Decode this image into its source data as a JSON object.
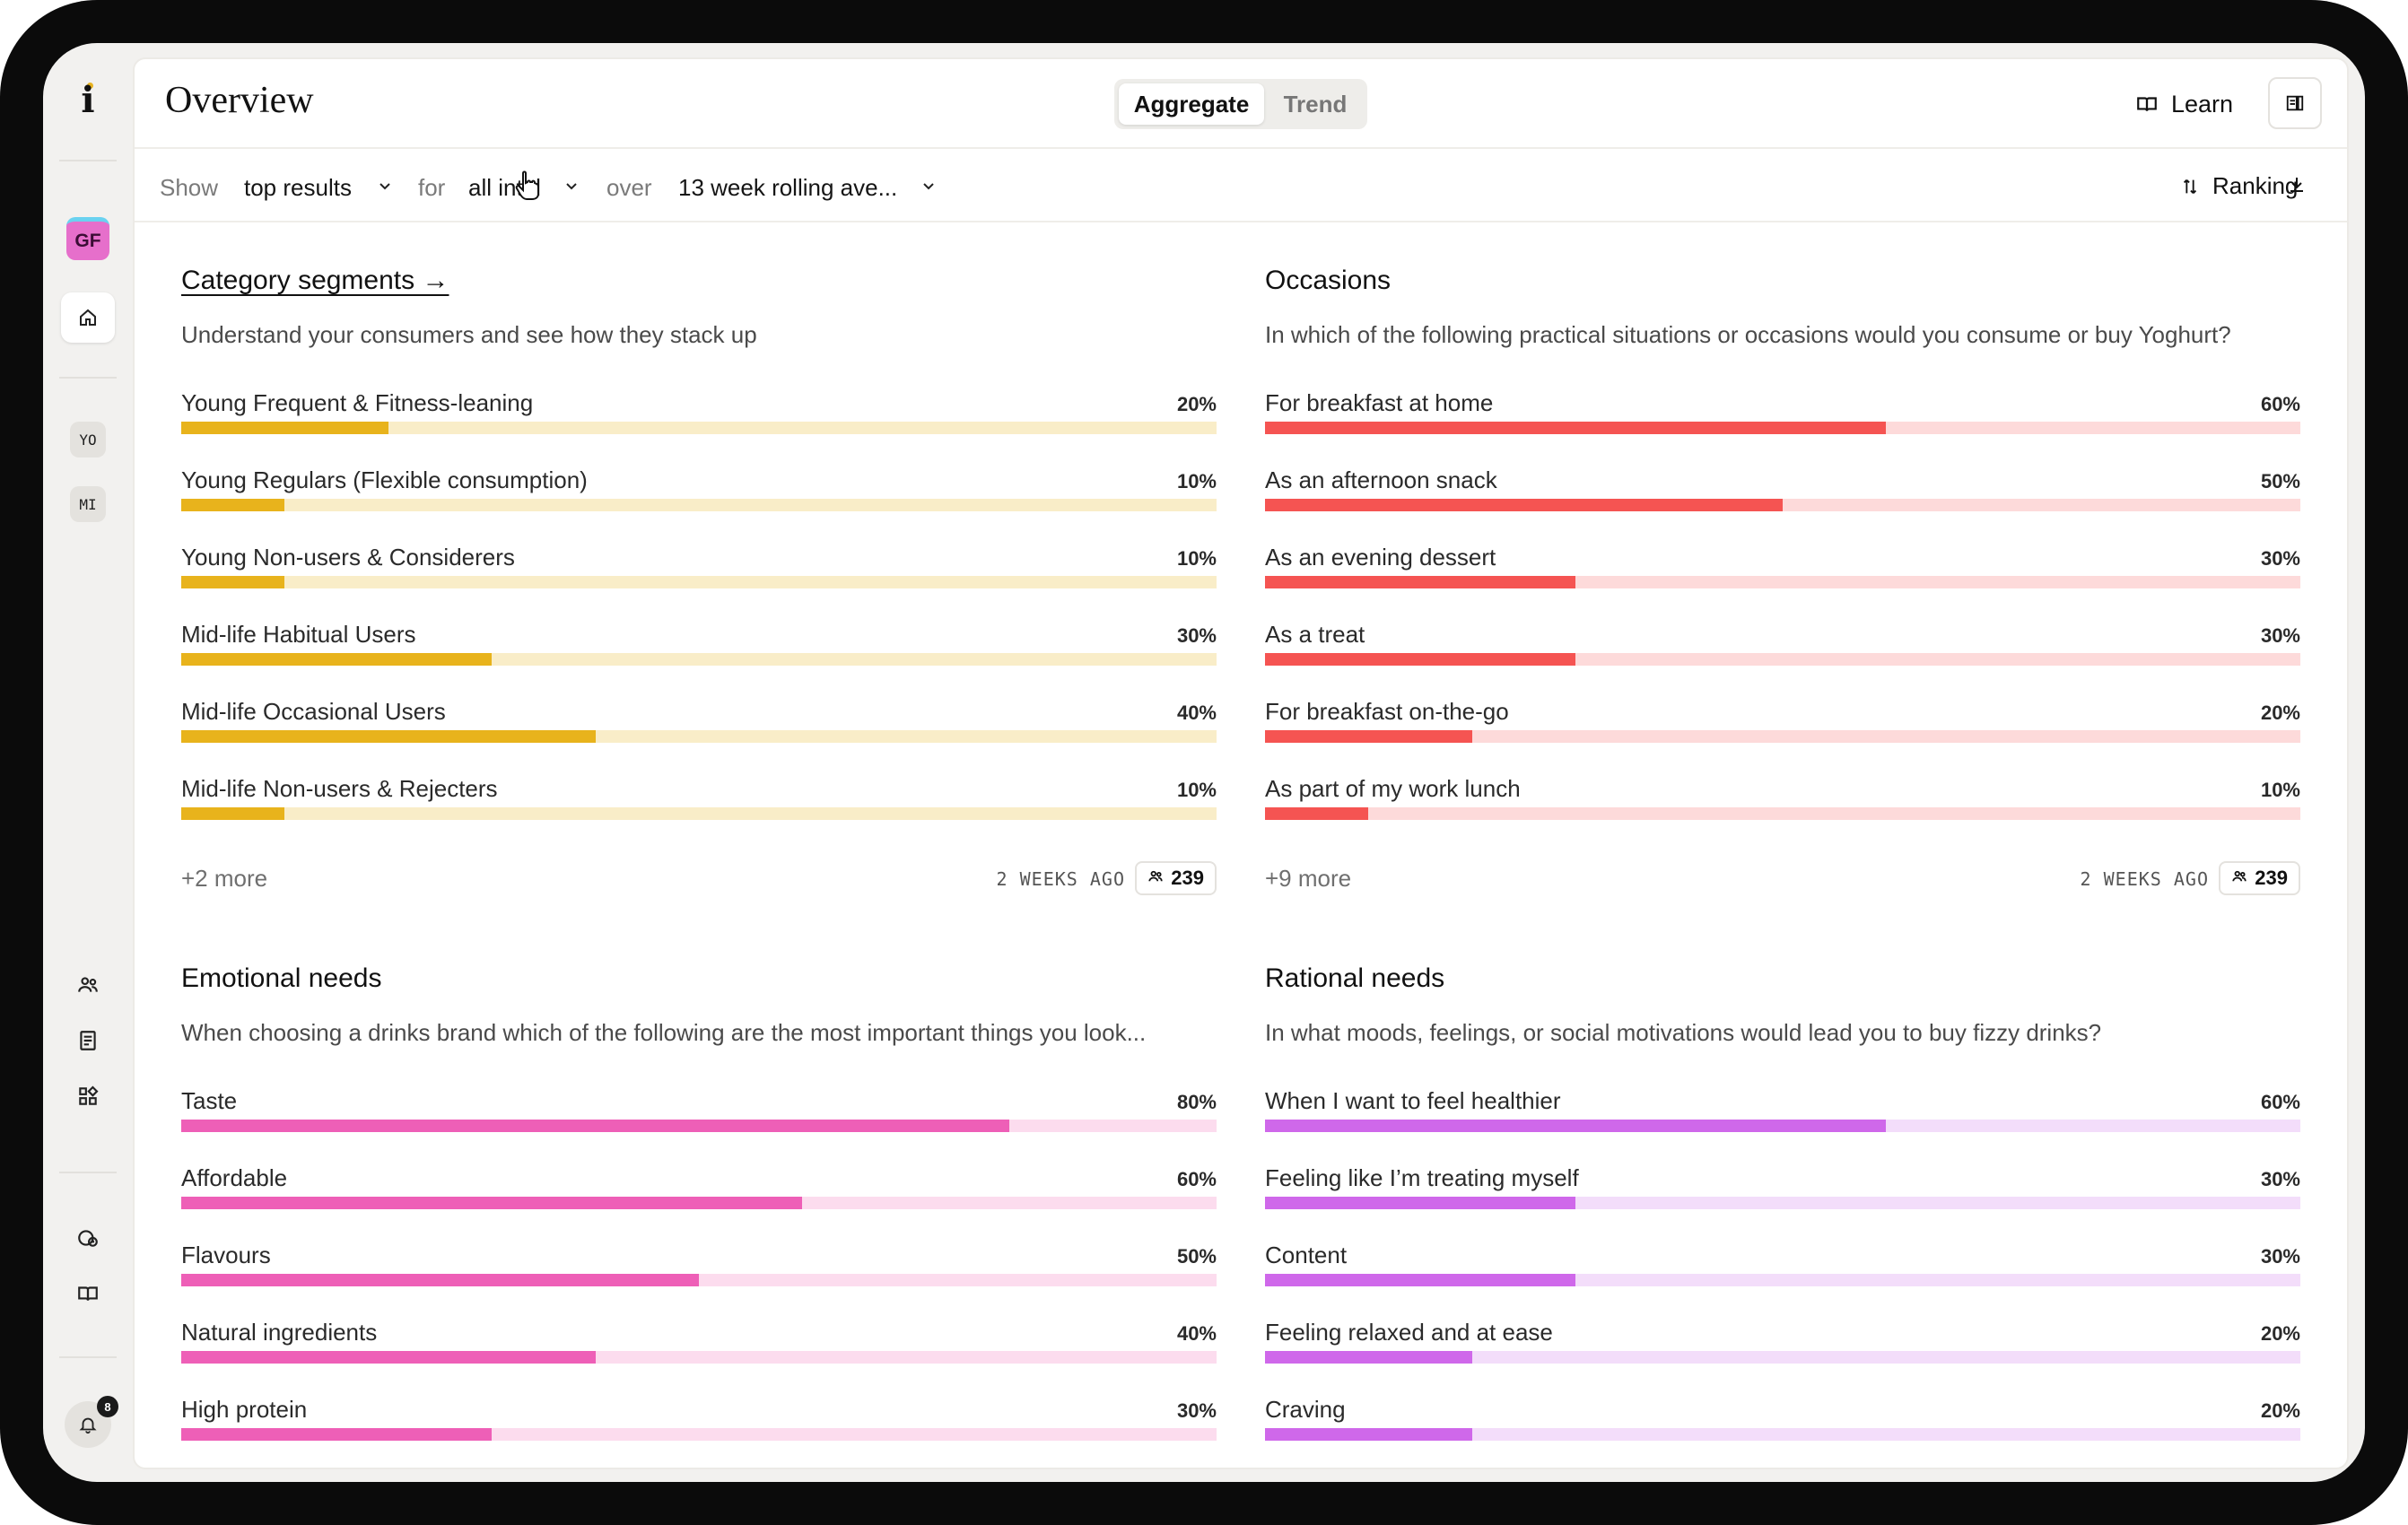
{
  "sidebar": {
    "logo": "i",
    "workspace_avatar": "GF",
    "chips": [
      "YO",
      "MI"
    ],
    "notification_count": "8"
  },
  "header": {
    "title": "Overview",
    "tabs": [
      {
        "label": "Aggregate",
        "active": true
      },
      {
        "label": "Trend",
        "active": false
      }
    ],
    "learn_label": "Learn"
  },
  "filters": {
    "show_label": "Show",
    "show_value": "top results",
    "for_label": "for",
    "for_value": "all intel",
    "over_label": "over",
    "over_value": "13 week rolling ave...",
    "ranking_label": "Ranking"
  },
  "colors": {
    "yellow": "#e8b31c",
    "yellow_track": "#f9edc8",
    "red": "#f55452",
    "red_track": "#fddada",
    "pink": "#ee5fb7",
    "pink_track": "#fcdcee",
    "purple": "#cf68ea",
    "purple_track": "#f3ddfa"
  },
  "cards": [
    {
      "title": "Category segments →",
      "subtitle": "Understand your consumers and see how they stack up",
      "color": "yellow",
      "rows": [
        {
          "label": "Young Frequent & Fitness-leaning",
          "value": 20,
          "pct": "20%"
        },
        {
          "label": "Young Regulars (Flexible consumption)",
          "value": 10,
          "pct": "10%"
        },
        {
          "label": "Young Non-users & Considerers",
          "value": 10,
          "pct": "10%"
        },
        {
          "label": "Mid-life Habitual Users",
          "value": 30,
          "pct": "30%"
        },
        {
          "label": "Mid-life Occasional Users",
          "value": 40,
          "pct": "40%"
        },
        {
          "label": "Mid-life Non-users & Rejecters",
          "value": 10,
          "pct": "10%"
        }
      ],
      "more": "+2 more",
      "ago": "2 WEEKS AGO",
      "count": "239"
    },
    {
      "title": "Occasions",
      "subtitle": "In which of the following practical situations or occasions would you consume or buy Yoghurt?",
      "color": "red",
      "rows": [
        {
          "label": "For breakfast at home",
          "value": 60,
          "pct": "60%"
        },
        {
          "label": "As an afternoon snack",
          "value": 50,
          "pct": "50%"
        },
        {
          "label": "As an evening dessert",
          "value": 30,
          "pct": "30%"
        },
        {
          "label": "As a treat",
          "value": 30,
          "pct": "30%"
        },
        {
          "label": "For breakfast on-the-go",
          "value": 20,
          "pct": "20%"
        },
        {
          "label": "As part of my work lunch",
          "value": 10,
          "pct": "10%"
        }
      ],
      "more": "+9 more",
      "ago": "2 WEEKS AGO",
      "count": "239"
    },
    {
      "title": "Emotional needs",
      "subtitle": "When choosing a drinks brand which of the following are the most important things you look...",
      "color": "pink",
      "rows": [
        {
          "label": "Taste",
          "value": 80,
          "pct": "80%"
        },
        {
          "label": "Affordable",
          "value": 60,
          "pct": "60%"
        },
        {
          "label": "Flavours",
          "value": 50,
          "pct": "50%"
        },
        {
          "label": "Natural ingredients",
          "value": 40,
          "pct": "40%"
        },
        {
          "label": "High protein",
          "value": 30,
          "pct": "30%"
        }
      ]
    },
    {
      "title": "Rational needs",
      "subtitle": "In what moods, feelings, or social motivations would lead you to buy fizzy drinks?",
      "color": "purple",
      "rows": [
        {
          "label": "When I want to feel healthier",
          "value": 60,
          "pct": "60%"
        },
        {
          "label": "Feeling like I’m treating myself",
          "value": 30,
          "pct": "30%"
        },
        {
          "label": "Content",
          "value": 30,
          "pct": "30%"
        },
        {
          "label": "Feeling relaxed and at ease",
          "value": 20,
          "pct": "20%"
        },
        {
          "label": "Craving",
          "value": 20,
          "pct": "20%"
        }
      ]
    }
  ]
}
